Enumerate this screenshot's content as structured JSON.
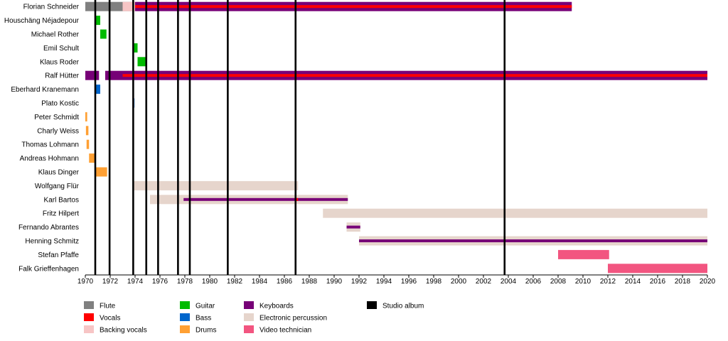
{
  "chart_data": {
    "type": "timeline",
    "x_range": [
      1970,
      2020
    ],
    "x_ticks": [
      "1970",
      "1972",
      "1974",
      "1976",
      "1978",
      "1980",
      "1982",
      "1984",
      "1986",
      "1988",
      "1990",
      "1992",
      "1994",
      "1996",
      "1998",
      "2000",
      "2002",
      "2004",
      "2006",
      "2008",
      "2010",
      "2012",
      "2014",
      "2016",
      "2018",
      "2020"
    ],
    "colors": {
      "Flute": "#808080",
      "Vocals": "#ff0000",
      "Backing vocals": "#f7c5c5",
      "Guitar": "#00bb00",
      "Bass": "#0066cc",
      "Drums": "#ffa033",
      "Keyboards": "#770077",
      "Electronic percussion": "#e6d5cc",
      "Video technician": "#f25580",
      "Studio album": "#000000"
    },
    "members": [
      {
        "name": "Florian Schneider",
        "bars": [
          {
            "role": "Flute",
            "start": 1970.0,
            "end": 1974.0
          },
          {
            "role": "Backing vocals",
            "start": 1973.0,
            "end": 1974.0
          },
          {
            "role": "Keyboards",
            "start": 1974.0,
            "end": 2009.1
          },
          {
            "role": "Vocals",
            "start": 1974.0,
            "end": 2009.1,
            "overlay": true
          }
        ]
      },
      {
        "name": "Houschäng Néjadepour",
        "bars": [
          {
            "role": "Guitar",
            "start": 1970.8,
            "end": 1971.2
          }
        ]
      },
      {
        "name": "Michael Rother",
        "bars": [
          {
            "role": "Guitar",
            "start": 1971.2,
            "end": 1971.7
          }
        ]
      },
      {
        "name": "Emil Schult",
        "bars": [
          {
            "role": "Guitar",
            "start": 1973.8,
            "end": 1974.2
          }
        ]
      },
      {
        "name": "Klaus Roder",
        "bars": [
          {
            "role": "Guitar",
            "start": 1974.2,
            "end": 1974.9
          }
        ]
      },
      {
        "name": "Ralf Hütter",
        "bars": [
          {
            "role": "Keyboards",
            "start": 1970.0,
            "end": 1971.1
          },
          {
            "role": "Keyboards",
            "start": 1971.6,
            "end": 2020.0
          },
          {
            "role": "Vocals",
            "start": 1973.0,
            "end": 2020.0,
            "overlay": true
          }
        ]
      },
      {
        "name": "Eberhard Kranemann",
        "bars": [
          {
            "role": "Bass",
            "start": 1970.8,
            "end": 1971.2
          }
        ]
      },
      {
        "name": "Plato Kostic",
        "bars": [
          {
            "role": "Bass",
            "start": 1973.8,
            "end": 1973.95
          }
        ]
      },
      {
        "name": "Peter Schmidt",
        "bars": [
          {
            "role": "Drums",
            "start": 1970.0,
            "end": 1970.15
          }
        ]
      },
      {
        "name": "Charly Weiss",
        "bars": [
          {
            "role": "Drums",
            "start": 1970.05,
            "end": 1970.25
          }
        ]
      },
      {
        "name": "Thomas Lohmann",
        "bars": [
          {
            "role": "Drums",
            "start": 1970.1,
            "end": 1970.3
          }
        ]
      },
      {
        "name": "Andreas Hohmann",
        "bars": [
          {
            "role": "Drums",
            "start": 1970.3,
            "end": 1970.85
          }
        ]
      },
      {
        "name": "Klaus Dinger",
        "bars": [
          {
            "role": "Drums",
            "start": 1970.8,
            "end": 1971.75
          }
        ]
      },
      {
        "name": "Wolfgang Flür",
        "bars": [
          {
            "role": "Electronic percussion",
            "start": 1973.9,
            "end": 1987.1
          }
        ]
      },
      {
        "name": "Karl Bartos",
        "bars": [
          {
            "role": "Electronic percussion",
            "start": 1975.2,
            "end": 1991.1
          },
          {
            "role": "Keyboards",
            "start": 1977.9,
            "end": 1991.1,
            "overlay": true
          },
          {
            "role": "Vocals",
            "start": 1986.9,
            "end": 1987.1,
            "overlay": true
          }
        ]
      },
      {
        "name": "Fritz Hilpert",
        "bars": [
          {
            "role": "Electronic percussion",
            "start": 1989.1,
            "end": 2020.0
          }
        ]
      },
      {
        "name": "Fernando Abrantes",
        "bars": [
          {
            "role": "Electronic percussion",
            "start": 1991.0,
            "end": 1992.1
          },
          {
            "role": "Keyboards",
            "start": 1991.0,
            "end": 1992.1,
            "overlay": true
          }
        ]
      },
      {
        "name": "Henning Schmitz",
        "bars": [
          {
            "role": "Electronic percussion",
            "start": 1992.0,
            "end": 2020.0
          },
          {
            "role": "Keyboards",
            "start": 1992.0,
            "end": 2020.0,
            "overlay": true
          }
        ]
      },
      {
        "name": "Stefan Pfaffe",
        "bars": [
          {
            "role": "Video technician",
            "start": 2008.0,
            "end": 2012.1
          }
        ]
      },
      {
        "name": "Falk Grieffenhagen",
        "bars": [
          {
            "role": "Video technician",
            "start": 2012.0,
            "end": 2020.0
          }
        ]
      }
    ],
    "studio_albums": [
      1970.8,
      1971.95,
      1973.85,
      1974.9,
      1975.85,
      1977.45,
      1978.4,
      1981.45,
      1986.9,
      2003.7
    ],
    "legend": [
      {
        "label": "Flute",
        "role": "Flute"
      },
      {
        "label": "Vocals",
        "role": "Vocals"
      },
      {
        "label": "Backing vocals",
        "role": "Backing vocals"
      },
      {
        "label": "Guitar",
        "role": "Guitar"
      },
      {
        "label": "Bass",
        "role": "Bass"
      },
      {
        "label": "Drums",
        "role": "Drums"
      },
      {
        "label": "Keyboards",
        "role": "Keyboards"
      },
      {
        "label": "Electronic percussion",
        "role": "Electronic percussion"
      },
      {
        "label": "Video technician",
        "role": "Video technician"
      },
      {
        "label": "Studio album",
        "role": "Studio album"
      }
    ]
  }
}
